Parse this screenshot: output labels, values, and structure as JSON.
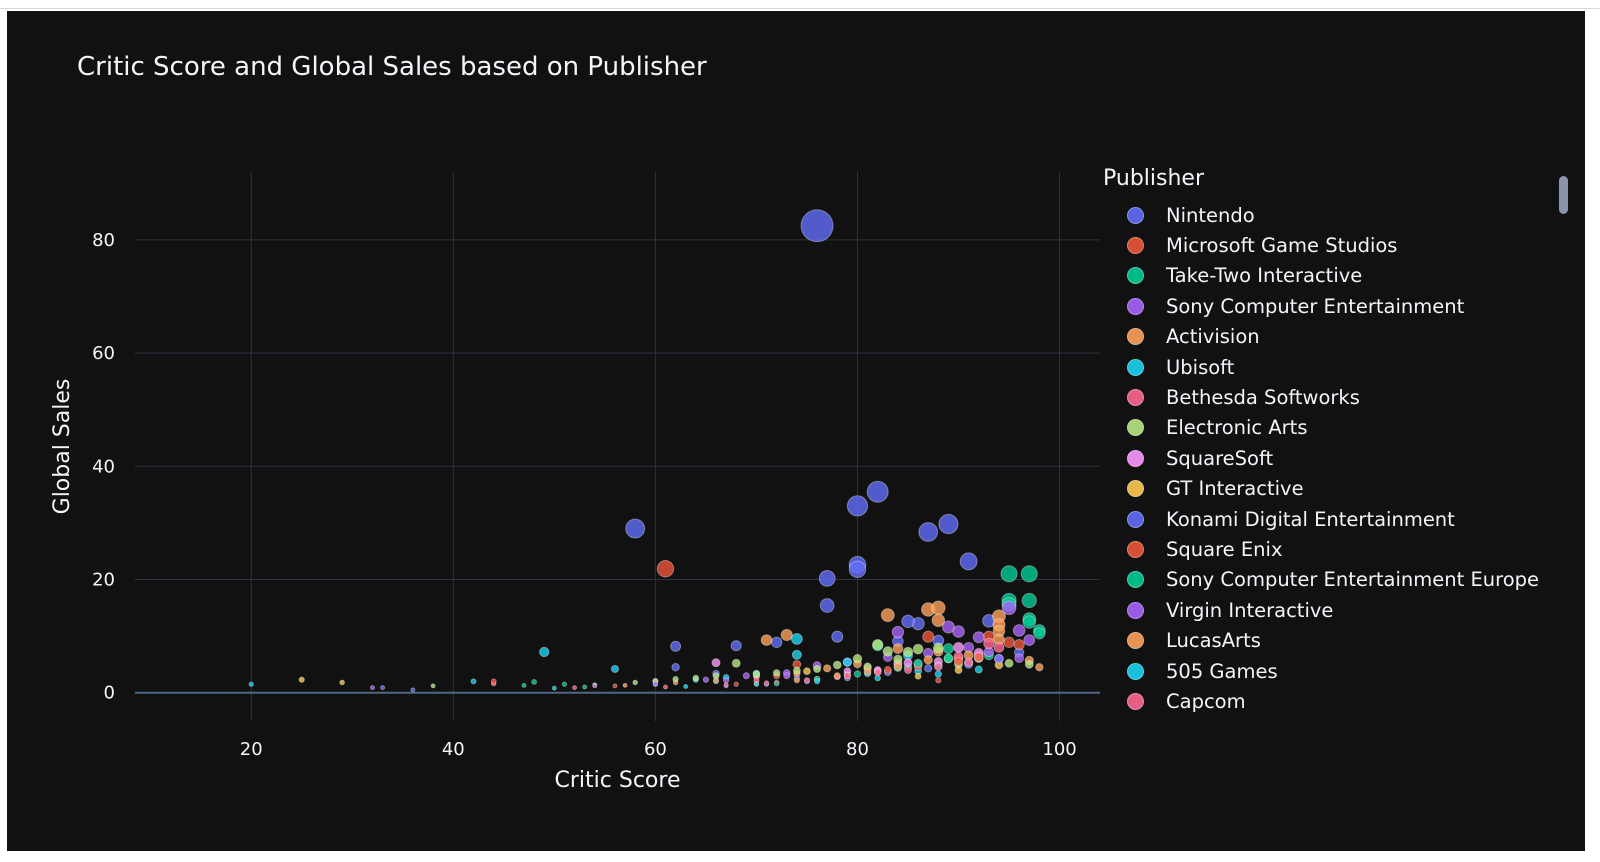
{
  "chart_data": {
    "type": "scatter",
    "title": "Critic Score and Global Sales based on Publisher",
    "xlabel": "Critic Score",
    "ylabel": "Global Sales",
    "xlim": [
      8.5,
      104
    ],
    "ylim": [
      -5,
      92
    ],
    "xticks": [
      20,
      40,
      60,
      80,
      100
    ],
    "yticks": [
      0,
      20,
      40,
      60,
      80
    ],
    "grid": true,
    "legend_title": "Publisher",
    "legend_position": "right",
    "marker_size_encodes": "Global Sales",
    "series": [
      {
        "name": "Nintendo",
        "color": "#636efa",
        "points": [
          [
            76,
            82.5
          ],
          [
            82,
            35.5
          ],
          [
            80,
            33
          ],
          [
            89,
            29.8
          ],
          [
            58,
            29
          ],
          [
            87,
            28.4
          ],
          [
            91,
            23.2
          ],
          [
            80,
            22.6
          ],
          [
            80,
            21.8
          ],
          [
            77,
            20.2
          ],
          [
            77,
            15.4
          ],
          [
            78,
            9.9
          ],
          [
            62,
            8.2
          ],
          [
            68,
            8.3
          ],
          [
            72,
            8.9
          ],
          [
            84,
            9.1
          ],
          [
            86,
            12.2
          ],
          [
            85,
            12.6
          ],
          [
            93,
            12.7
          ],
          [
            88,
            9.2
          ],
          [
            62,
            4.5
          ],
          [
            66,
            3.4
          ],
          [
            70,
            3.0
          ],
          [
            74,
            2.6
          ],
          [
            84,
            5.2
          ],
          [
            92,
            6.4
          ],
          [
            96,
            7.1
          ]
        ]
      },
      {
        "name": "Microsoft Game Studios",
        "color": "#ef553b",
        "points": [
          [
            61,
            21.9
          ],
          [
            74,
            5.0
          ],
          [
            87,
            9.9
          ],
          [
            93,
            9.9
          ],
          [
            95,
            8.9
          ],
          [
            96,
            8.5
          ],
          [
            72,
            3.0
          ],
          [
            81,
            4.3
          ],
          [
            90,
            6.0
          ],
          [
            88,
            2.2
          ],
          [
            60,
            2.1
          ],
          [
            56,
            1.2
          ]
        ]
      },
      {
        "name": "Take-Two Interactive",
        "color": "#00cc96",
        "points": [
          [
            95,
            21.0
          ],
          [
            97,
            21.0
          ],
          [
            95,
            16.3
          ],
          [
            97,
            16.3
          ],
          [
            95,
            15.6
          ],
          [
            97,
            13.0
          ],
          [
            98,
            11.0
          ],
          [
            97,
            12.5
          ],
          [
            98,
            10.5
          ],
          [
            82,
            8.3
          ],
          [
            89,
            7.8
          ],
          [
            93,
            6.6
          ],
          [
            48,
            1.9
          ],
          [
            51,
            1.5
          ],
          [
            66,
            2.0
          ],
          [
            79,
            3.2
          ],
          [
            85,
            4.5
          ],
          [
            91,
            5.3
          ]
        ]
      },
      {
        "name": "Sony Computer Entertainment",
        "color": "#ab63fa",
        "points": [
          [
            89,
            11.6
          ],
          [
            84,
            10.7
          ],
          [
            90,
            10.8
          ],
          [
            92,
            9.8
          ],
          [
            95,
            15.0
          ],
          [
            96,
            11.0
          ],
          [
            97,
            9.3
          ],
          [
            91,
            8.0
          ],
          [
            87,
            7.0
          ],
          [
            83,
            6.3
          ],
          [
            79,
            5.4
          ],
          [
            76,
            4.8
          ],
          [
            73,
            3.5
          ],
          [
            69,
            3.0
          ],
          [
            65,
            2.3
          ],
          [
            93,
            7.2
          ],
          [
            96,
            6.1
          ],
          [
            86,
            5.0
          ]
        ]
      },
      {
        "name": "Activision",
        "color": "#ffa15a",
        "points": [
          [
            83,
            13.7
          ],
          [
            87,
            14.7
          ],
          [
            88,
            15.0
          ],
          [
            94,
            13.5
          ],
          [
            88,
            12.8
          ],
          [
            94,
            12.0
          ],
          [
            94,
            10.9
          ],
          [
            94,
            9.4
          ],
          [
            71,
            9.3
          ],
          [
            73,
            10.2
          ],
          [
            84,
            7.8
          ],
          [
            88,
            7.3
          ],
          [
            91,
            6.6
          ],
          [
            97,
            5.7
          ],
          [
            98,
            4.5
          ],
          [
            80,
            5.1
          ],
          [
            77,
            4.3
          ],
          [
            74,
            3.4
          ],
          [
            70,
            2.9
          ],
          [
            66,
            2.2
          ],
          [
            62,
            1.8
          ]
        ]
      },
      {
        "name": "Ubisoft",
        "color": "#19d3f3",
        "points": [
          [
            49,
            7.2
          ],
          [
            56,
            4.2
          ],
          [
            74,
            9.5
          ],
          [
            74,
            6.7
          ],
          [
            79,
            5.4
          ],
          [
            85,
            6.6
          ],
          [
            88,
            4.8
          ],
          [
            81,
            3.4
          ],
          [
            70,
            3.4
          ],
          [
            67,
            2.7
          ],
          [
            64,
            2.3
          ],
          [
            60,
            1.5
          ],
          [
            42,
            2.0
          ],
          [
            20,
            1.5
          ],
          [
            92,
            4.1
          ],
          [
            86,
            3.8
          ]
        ]
      },
      {
        "name": "Bethesda Softworks",
        "color": "#ff6692",
        "points": [
          [
            93,
            8.7
          ],
          [
            94,
            8.0
          ],
          [
            90,
            6.4
          ],
          [
            84,
            5.0
          ],
          [
            82,
            3.8
          ],
          [
            78,
            2.8
          ],
          [
            70,
            2.2
          ],
          [
            44,
            1.6
          ]
        ]
      },
      {
        "name": "Electronic Arts",
        "color": "#b6e880",
        "points": [
          [
            82,
            8.5
          ],
          [
            83,
            7.3
          ],
          [
            85,
            7.2
          ],
          [
            88,
            7.9
          ],
          [
            86,
            7.7
          ],
          [
            89,
            6.0
          ],
          [
            92,
            6.1
          ],
          [
            95,
            5.2
          ],
          [
            97,
            5.0
          ],
          [
            80,
            6.0
          ],
          [
            78,
            4.9
          ],
          [
            76,
            4.2
          ],
          [
            74,
            3.9
          ],
          [
            72,
            3.5
          ],
          [
            70,
            3.3
          ],
          [
            68,
            5.2
          ],
          [
            66,
            3.0
          ],
          [
            64,
            2.6
          ],
          [
            62,
            2.4
          ],
          [
            60,
            2.0
          ],
          [
            58,
            1.8
          ],
          [
            54,
            1.4
          ],
          [
            38,
            1.2
          ],
          [
            81,
            4.6
          ],
          [
            84,
            5.9
          ],
          [
            90,
            5.0
          ]
        ]
      },
      {
        "name": "SquareSoft",
        "color": "#ff97ff",
        "points": [
          [
            92,
            7.0
          ],
          [
            90,
            8.0
          ],
          [
            94,
            6.0
          ],
          [
            88,
            5.5
          ],
          [
            85,
            5.3
          ],
          [
            82,
            4.0
          ],
          [
            66,
            5.3
          ],
          [
            79,
            3.8
          ]
        ]
      },
      {
        "name": "GT Interactive",
        "color": "#fecb52",
        "points": [
          [
            25,
            2.3
          ],
          [
            29,
            1.8
          ],
          [
            75,
            3.8
          ],
          [
            86,
            2.9
          ],
          [
            94,
            4.9
          ],
          [
            90,
            4.0
          ]
        ]
      },
      {
        "name": "Konami Digital Entertainment",
        "color": "#636efa",
        "points": [
          [
            94,
            6.0
          ],
          [
            91,
            5.0
          ],
          [
            87,
            4.3
          ],
          [
            83,
            3.6
          ],
          [
            79,
            2.6
          ],
          [
            75,
            2.0
          ],
          [
            71,
            1.5
          ],
          [
            67,
            1.2
          ],
          [
            33,
            0.9
          ],
          [
            36,
            0.5
          ]
        ]
      },
      {
        "name": "Square Enix",
        "color": "#ef553b",
        "points": [
          [
            92,
            6.3
          ],
          [
            90,
            5.5
          ],
          [
            86,
            4.6
          ],
          [
            83,
            4.0
          ],
          [
            79,
            3.0
          ],
          [
            76,
            2.4
          ],
          [
            72,
            1.8
          ],
          [
            68,
            1.5
          ],
          [
            44,
            2.0
          ]
        ]
      },
      {
        "name": "Sony Computer Entertainment Europe",
        "color": "#00cc96",
        "points": [
          [
            89,
            6.1
          ],
          [
            86,
            5.2
          ],
          [
            84,
            4.4
          ],
          [
            80,
            3.3
          ],
          [
            76,
            2.4
          ],
          [
            72,
            1.6
          ],
          [
            47,
            1.3
          ],
          [
            53,
            1.0
          ]
        ]
      },
      {
        "name": "Virgin Interactive",
        "color": "#ab63fa",
        "points": [
          [
            73,
            3.0
          ],
          [
            67,
            2.2
          ],
          [
            60,
            1.6
          ],
          [
            54,
            1.2
          ],
          [
            32,
            0.9
          ]
        ]
      },
      {
        "name": "LucasArts",
        "color": "#ffa15a",
        "points": [
          [
            87,
            5.8
          ],
          [
            84,
            4.6
          ],
          [
            81,
            3.7
          ],
          [
            78,
            3.0
          ],
          [
            74,
            2.2
          ],
          [
            70,
            1.6
          ],
          [
            57,
            1.3
          ]
        ]
      },
      {
        "name": "505 Games",
        "color": "#19d3f3",
        "points": [
          [
            88,
            3.3
          ],
          [
            82,
            2.6
          ],
          [
            76,
            2.0
          ],
          [
            70,
            1.5
          ],
          [
            63,
            1.1
          ],
          [
            50,
            0.8
          ]
        ]
      },
      {
        "name": "Capcom",
        "color": "#ff6692",
        "points": [
          [
            91,
            5.4
          ],
          [
            88,
            4.6
          ],
          [
            85,
            4.0
          ],
          [
            82,
            3.6
          ],
          [
            79,
            3.0
          ],
          [
            75,
            2.2
          ],
          [
            71,
            1.7
          ],
          [
            67,
            1.4
          ],
          [
            61,
            1.0
          ],
          [
            52,
            0.9
          ]
        ]
      }
    ]
  }
}
